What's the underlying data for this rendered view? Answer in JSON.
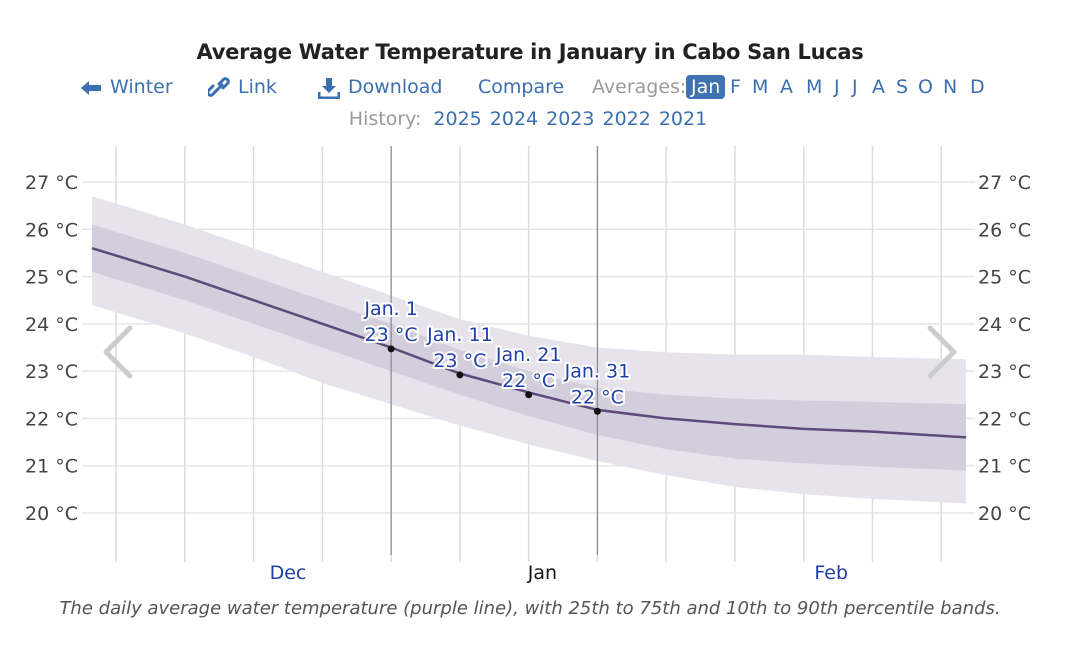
{
  "title": "Average Water Temperature in January in Cabo San Lucas",
  "nav": {
    "back_label": "Winter",
    "back_icon": "arrow-left-icon",
    "link_label": "Link",
    "link_icon": "link-icon",
    "download_label": "Download",
    "download_icon": "download-icon",
    "compare_label": "Compare",
    "averages_label": "Averages:",
    "months": [
      "Jan",
      "F",
      "M",
      "A",
      "M",
      "J",
      "J",
      "A",
      "S",
      "O",
      "N",
      "D"
    ],
    "active_month_index": 0
  },
  "history": {
    "label": "History:",
    "years": [
      "2025",
      "2024",
      "2023",
      "2022",
      "2021"
    ]
  },
  "caption": "The daily average water temperature (purple line), with 25th to 75th and 10th to 90th percentile bands.",
  "colors": {
    "link": "#3a6fb0",
    "active_month_bg": "#3f72b0",
    "mean_line": "#5b4a7a",
    "band_25_75": "#d3cedc",
    "band_10_90": "#e6e3ec",
    "annotation_text": "#1f3fa8",
    "month_label": "#1f3fa8"
  },
  "chart_data": {
    "type": "area",
    "title": "Average Water Temperature in January in Cabo San Lucas",
    "xlabel": "",
    "ylabel": "",
    "x_unit": "days relative to Jan 1",
    "xlim": [
      -43.5,
      83.6
    ],
    "ylim": [
      19.3,
      28.0
    ],
    "yticks": [
      20,
      21,
      22,
      23,
      24,
      25,
      26,
      27
    ],
    "ytick_labels": [
      "20 °C",
      "21 °C",
      "22 °C",
      "23 °C",
      "24 °C",
      "25 °C",
      "26 °C",
      "27 °C"
    ],
    "x_gridlines_days": [
      -40,
      -30,
      -20,
      -10,
      0,
      10,
      20,
      30,
      40,
      50,
      60,
      70,
      80
    ],
    "highlight_lines_days": [
      0,
      30
    ],
    "month_labels": [
      {
        "label": "Dec",
        "day": -15,
        "highlight": false
      },
      {
        "label": "Jan",
        "day": 22,
        "highlight": true
      },
      {
        "label": "Feb",
        "day": 64,
        "highlight": false
      }
    ],
    "grid": true,
    "series": [
      {
        "name": "mean",
        "x": [
          -43.5,
          -30,
          -20,
          -10,
          0,
          10,
          20,
          30,
          40,
          50,
          60,
          70,
          83.6
        ],
        "values": [
          25.6,
          25.0,
          24.5,
          24.0,
          23.5,
          22.95,
          22.55,
          22.18,
          22.0,
          21.88,
          21.78,
          21.72,
          21.6
        ]
      },
      {
        "name": "p25",
        "x": [
          -43.5,
          -30,
          -20,
          -10,
          0,
          10,
          20,
          30,
          40,
          50,
          60,
          70,
          83.6
        ],
        "values": [
          25.1,
          24.5,
          24.0,
          23.5,
          23.0,
          22.5,
          22.05,
          21.65,
          21.35,
          21.15,
          21.05,
          20.98,
          20.9
        ]
      },
      {
        "name": "p75",
        "x": [
          -43.5,
          -30,
          -20,
          -10,
          0,
          10,
          20,
          30,
          40,
          50,
          60,
          70,
          83.6
        ],
        "values": [
          26.1,
          25.5,
          25.0,
          24.5,
          24.0,
          23.45,
          23.0,
          22.65,
          22.5,
          22.42,
          22.38,
          22.35,
          22.3
        ]
      },
      {
        "name": "p10",
        "x": [
          -43.5,
          -30,
          -20,
          -10,
          0,
          10,
          20,
          30,
          40,
          50,
          60,
          70,
          83.6
        ],
        "values": [
          24.4,
          23.8,
          23.3,
          22.75,
          22.3,
          21.85,
          21.45,
          21.1,
          20.8,
          20.55,
          20.4,
          20.3,
          20.2
        ]
      },
      {
        "name": "p90",
        "x": [
          -43.5,
          -30,
          -20,
          -10,
          0,
          10,
          20,
          30,
          40,
          50,
          60,
          70,
          83.6
        ],
        "values": [
          26.7,
          26.1,
          25.6,
          25.1,
          24.6,
          24.1,
          23.75,
          23.5,
          23.4,
          23.35,
          23.35,
          23.3,
          23.25
        ]
      }
    ],
    "annotations": [
      {
        "day": 0,
        "label": "Jan. 1",
        "value_label": "23 °C",
        "value": 23.47
      },
      {
        "day": 10,
        "label": "Jan. 11",
        "value_label": "23 °C",
        "value": 22.92
      },
      {
        "day": 20,
        "label": "Jan. 21",
        "value_label": "22 °C",
        "value": 22.5
      },
      {
        "day": 30,
        "label": "Jan. 31",
        "value_label": "22 °C",
        "value": 22.15
      }
    ]
  }
}
